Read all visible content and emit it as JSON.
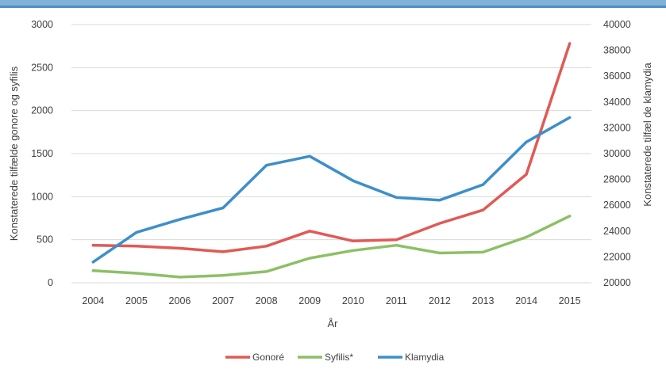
{
  "chart_data": {
    "type": "line",
    "x_label": "År",
    "y_left_label": "Konstaterede tilfælde gonore og syfilis",
    "y_right_label": "Konstaterede tilfæl de klamydia",
    "categories": [
      "2004",
      "2005",
      "2006",
      "2007",
      "2008",
      "2009",
      "2010",
      "2011",
      "2012",
      "2013",
      "2014",
      "2015"
    ],
    "y_left_ticks": [
      "0",
      "500",
      "1000",
      "1500",
      "2000",
      "2500",
      "3000"
    ],
    "y_left_range": [
      0,
      3000
    ],
    "y_right_ticks": [
      "20000",
      "22000",
      "24000",
      "26000",
      "28000",
      "30000",
      "32000",
      "34000",
      "36000",
      "38000",
      "40000"
    ],
    "y_right_range": [
      20000,
      40000
    ],
    "grid": true,
    "legend_position": "bottom",
    "series": [
      {
        "name": "Gonoré",
        "axis": "left",
        "color": "#e05a55",
        "values": [
          435,
          425,
          400,
          360,
          425,
          600,
          485,
          500,
          690,
          845,
          1260,
          2780
        ]
      },
      {
        "name": "Syfilis*",
        "axis": "left",
        "color": "#8cc065",
        "values": [
          140,
          110,
          65,
          85,
          130,
          285,
          375,
          435,
          345,
          355,
          530,
          775
        ]
      },
      {
        "name": "Klamydia",
        "axis": "right",
        "color": "#3d8fc9",
        "values": [
          21600,
          23900,
          24900,
          25800,
          29100,
          29800,
          27900,
          26600,
          26400,
          27600,
          30900,
          32800
        ]
      }
    ]
  }
}
